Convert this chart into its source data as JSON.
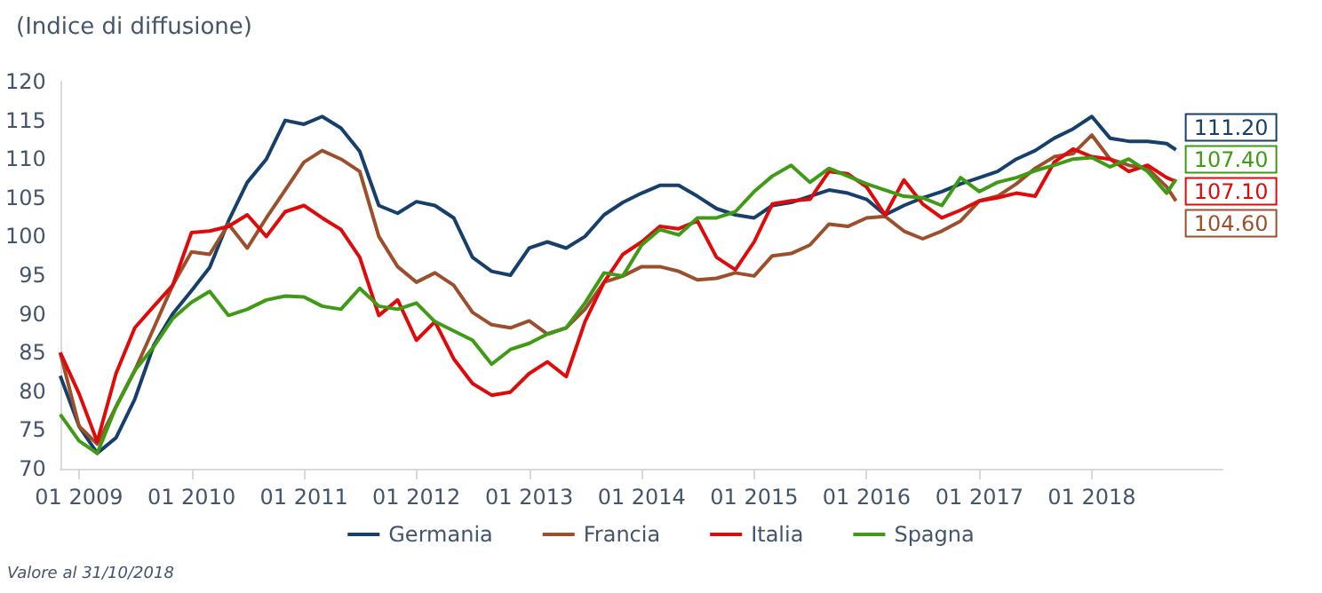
{
  "chart_data": {
    "type": "line",
    "title": "(Indice di diffusione)",
    "annotations": [
      "Valore al 31/10/2018"
    ],
    "x": [
      "2008-11",
      "2009-01",
      "2009-03",
      "2009-05",
      "2009-07",
      "2009-09",
      "2009-11",
      "2010-01",
      "2010-03",
      "2010-05",
      "2010-07",
      "2010-09",
      "2010-11",
      "2011-01",
      "2011-03",
      "2011-05",
      "2011-07",
      "2011-09",
      "2011-11",
      "2012-01",
      "2012-03",
      "2012-05",
      "2012-07",
      "2012-09",
      "2012-11",
      "2013-01",
      "2013-03",
      "2013-05",
      "2013-07",
      "2013-09",
      "2013-11",
      "2014-01",
      "2014-03",
      "2014-05",
      "2014-07",
      "2014-09",
      "2014-11",
      "2015-01",
      "2015-03",
      "2015-05",
      "2015-07",
      "2015-09",
      "2015-11",
      "2016-01",
      "2016-03",
      "2016-05",
      "2016-07",
      "2016-09",
      "2016-11",
      "2017-01",
      "2017-03",
      "2017-05",
      "2017-07",
      "2017-09",
      "2017-11",
      "2018-01",
      "2018-03",
      "2018-05",
      "2018-07",
      "2018-09",
      "2018-10"
    ],
    "series": [
      {
        "name": "Germania",
        "color": "#173f6b",
        "values": [
          82,
          75.5,
          72,
          74,
          79,
          86,
          90,
          93,
          96,
          102,
          107,
          110,
          115,
          114.5,
          115.5,
          114,
          111,
          104,
          103,
          104.5,
          104,
          102.4,
          97.3,
          95.5,
          95,
          98.5,
          99.3,
          98.5,
          100,
          102.8,
          104.4,
          105.6,
          106.6,
          106.6,
          105.2,
          103.6,
          102.8,
          102.4,
          104,
          104.4,
          105.2,
          106,
          105.6,
          104.8,
          102.8,
          104,
          105,
          105.8,
          106.8,
          107.6,
          108.4,
          110,
          111.1,
          112.7,
          113.9,
          115.5,
          112.7,
          112.3,
          112.3,
          112,
          111.2
        ],
        "value_labels": [
          null,
          null,
          null,
          null,
          null,
          null,
          null,
          null,
          null,
          null,
          null,
          null,
          null,
          null,
          null,
          null,
          null,
          null,
          null,
          null,
          null,
          null,
          null,
          null,
          null,
          null,
          null,
          null,
          null,
          null,
          null,
          null,
          null,
          null,
          null,
          null,
          null,
          null,
          null,
          null,
          null,
          null,
          null,
          null,
          null,
          null,
          null,
          null,
          null,
          null,
          null,
          null,
          null,
          null,
          null,
          null,
          null,
          null,
          null,
          null,
          "111.20"
        ]
      },
      {
        "name": "Francia",
        "color": "#9c4f2b",
        "values": [
          85,
          75.5,
          73.2,
          78,
          82.7,
          88.2,
          93.7,
          98,
          97.7,
          101.6,
          98.5,
          102.4,
          106,
          109.6,
          111.1,
          110,
          108.4,
          100,
          96.1,
          94.1,
          95.3,
          93.7,
          90.2,
          88.6,
          88.2,
          89.1,
          87.4,
          88.2,
          90.6,
          94.1,
          94.9,
          96.1,
          96.1,
          95.5,
          94.4,
          94.6,
          95.3,
          94.9,
          97.5,
          97.8,
          98.9,
          101.6,
          101.3,
          102.4,
          102.6,
          100.7,
          99.7,
          100.7,
          102,
          104.6,
          105.2,
          106.8,
          108.8,
          110.3,
          110.7,
          113.1,
          110,
          109.2,
          108.8,
          106.4,
          104.6
        ],
        "value_labels": [
          null,
          null,
          null,
          null,
          null,
          null,
          null,
          null,
          null,
          null,
          null,
          null,
          null,
          null,
          null,
          null,
          null,
          null,
          null,
          null,
          null,
          null,
          null,
          null,
          null,
          null,
          null,
          null,
          null,
          null,
          null,
          null,
          null,
          null,
          null,
          null,
          null,
          null,
          null,
          null,
          null,
          null,
          null,
          null,
          null,
          null,
          null,
          null,
          null,
          null,
          null,
          null,
          null,
          null,
          null,
          null,
          null,
          null,
          null,
          null,
          "104.60"
        ]
      },
      {
        "name": "Italia",
        "color": "#e00a0a",
        "values": [
          85,
          79.7,
          73.5,
          82.3,
          88.2,
          91,
          93.7,
          100.5,
          100.7,
          101.3,
          102.8,
          100,
          103.2,
          104,
          102.4,
          100.9,
          97.3,
          89.8,
          91.8,
          86.6,
          89,
          84.2,
          81,
          79.5,
          79.9,
          82.3,
          83.8,
          81.9,
          89,
          94.1,
          97.7,
          99.3,
          101.3,
          101,
          102,
          97.3,
          95.7,
          99.3,
          104.2,
          104.6,
          104.8,
          108.4,
          108.1,
          106.4,
          102.8,
          107.3,
          104.2,
          102.4,
          103.4,
          104.6,
          105,
          105.6,
          105.2,
          109.6,
          111.3,
          110.3,
          110,
          108.4,
          109.2,
          107.6,
          107.1
        ],
        "value_labels": [
          null,
          null,
          null,
          null,
          null,
          null,
          null,
          null,
          null,
          null,
          null,
          null,
          null,
          null,
          null,
          null,
          null,
          null,
          null,
          null,
          null,
          null,
          null,
          null,
          null,
          null,
          null,
          null,
          null,
          null,
          null,
          null,
          null,
          null,
          null,
          null,
          null,
          null,
          null,
          null,
          null,
          null,
          null,
          null,
          null,
          null,
          null,
          null,
          null,
          null,
          null,
          null,
          null,
          null,
          null,
          null,
          null,
          null,
          null,
          null,
          "107.10"
        ]
      },
      {
        "name": "Spagna",
        "color": "#3f9a16",
        "values": [
          77,
          73.6,
          72,
          78,
          82.7,
          85.8,
          89.4,
          91.5,
          92.9,
          89.8,
          90.6,
          91.8,
          92.3,
          92.2,
          91,
          90.6,
          93.3,
          91,
          90.6,
          91.4,
          89,
          87.8,
          86.6,
          83.5,
          85.4,
          86.2,
          87.4,
          88.2,
          91.4,
          95.3,
          94.9,
          98.9,
          100.9,
          100.2,
          102.4,
          102.4,
          103.2,
          105.8,
          107.8,
          109.2,
          107,
          108.8,
          107.8,
          106.8,
          106,
          105.2,
          105,
          104,
          107.6,
          105.8,
          107,
          107.6,
          108.5,
          109.2,
          110,
          110.2,
          109,
          110,
          108.4,
          105.6,
          107.4
        ],
        "value_labels": [
          null,
          null,
          null,
          null,
          null,
          null,
          null,
          null,
          null,
          null,
          null,
          null,
          null,
          null,
          null,
          null,
          null,
          null,
          null,
          null,
          null,
          null,
          null,
          null,
          null,
          null,
          null,
          null,
          null,
          null,
          null,
          null,
          null,
          null,
          null,
          null,
          null,
          null,
          null,
          null,
          null,
          null,
          null,
          null,
          null,
          null,
          null,
          null,
          null,
          null,
          null,
          null,
          null,
          null,
          null,
          null,
          null,
          null,
          null,
          null,
          "107.40"
        ]
      }
    ],
    "xlim": [
      "2008-11",
      "2019-03"
    ],
    "xticks": [
      {
        "value": "2009-01",
        "label": "01 2009"
      },
      {
        "value": "2010-01",
        "label": "01 2010"
      },
      {
        "value": "2011-01",
        "label": "01 2011"
      },
      {
        "value": "2012-01",
        "label": "01 2012"
      },
      {
        "value": "2013-01",
        "label": "01 2013"
      },
      {
        "value": "2014-01",
        "label": "01 2014"
      },
      {
        "value": "2015-01",
        "label": "01 2015"
      },
      {
        "value": "2016-01",
        "label": "01 2016"
      },
      {
        "value": "2017-01",
        "label": "01 2017"
      },
      {
        "value": "2018-01",
        "label": "01 2018"
      }
    ],
    "ylim": [
      70,
      120
    ],
    "yticks": [
      70,
      75,
      80,
      85,
      90,
      95,
      100,
      105,
      110,
      115,
      120
    ],
    "legend": "bottom"
  }
}
